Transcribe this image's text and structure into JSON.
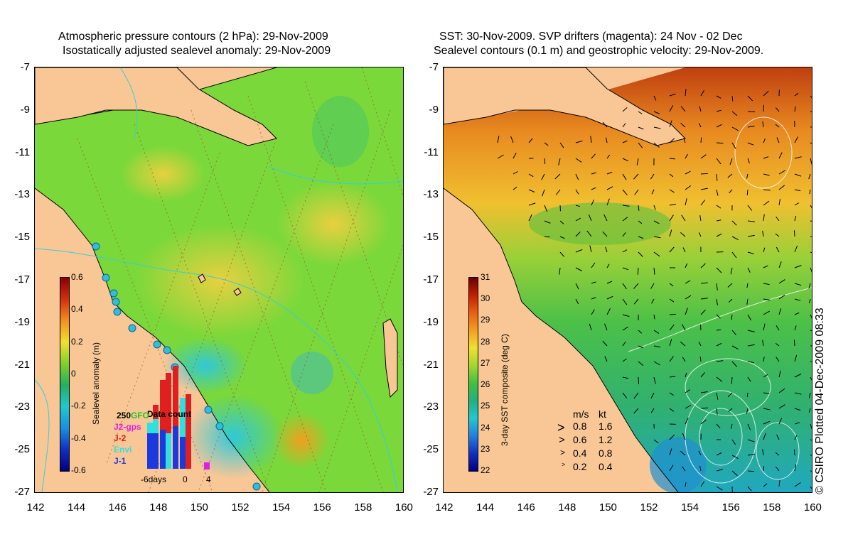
{
  "left_panel": {
    "title_line1": "Atmospheric pressure contours (2 hPa): 29-Nov-2009",
    "title_line2": "Isostatically adjusted sealevel anomaly: 29-Nov-2009",
    "colorbar_title": "Sealevel anomaly (m)",
    "colorbar_ticks": [
      "0.6",
      "0.4",
      "0.2",
      "0",
      "-0.2",
      "-0.4",
      "-0.6"
    ],
    "data_count_label": "Data count",
    "data_count_value": "250",
    "satellites": [
      {
        "name": "GFO"
      },
      {
        "name": "J2-gps"
      },
      {
        "name": "J-2"
      },
      {
        "name": "Envi"
      },
      {
        "name": "J-1"
      }
    ],
    "hist_axis": {
      "left": "-6days",
      "mid": "0",
      "right": "4"
    }
  },
  "right_panel": {
    "title_line1": "SST: 30-Nov-2009. SVP drifters (magenta): 24 Nov - 02 Dec",
    "title_line2": "Sealevel contours (0.1 m) and geostrophic velocity: 29-Nov-2009.",
    "colorbar_title": "3-day SST composite (deg C)",
    "colorbar_ticks": [
      "31",
      "30",
      "29",
      "28",
      "27",
      "26",
      "25",
      "24",
      "23",
      "22"
    ],
    "speed_header": {
      "ms": "m/s",
      "kt": "kt"
    },
    "speed_rows": [
      {
        "ms": "0.8",
        "kt": "1.6"
      },
      {
        "ms": "0.6",
        "kt": "1.2"
      },
      {
        "ms": "0.4",
        "kt": "0.8"
      },
      {
        "ms": "0.2",
        "kt": "0.4"
      }
    ]
  },
  "lat_ticks": [
    "-7",
    "-9",
    "-11",
    "-13",
    "-15",
    "-17",
    "-19",
    "-21",
    "-23",
    "-25",
    "-27"
  ],
  "lon_ticks": [
    "142",
    "144",
    "146",
    "148",
    "150",
    "152",
    "154",
    "156",
    "158",
    "160"
  ],
  "credit": "© CSIRO Plotted 04-Dec-2009 08:33",
  "colors": {
    "land": "#f9c796",
    "ocean_green": "#6ed234",
    "ocean_yellow": "#d8e040",
    "ocean_cyan": "#3cc8c0",
    "sst_orange": "#e88a20",
    "sst_green": "#3cb850"
  }
}
